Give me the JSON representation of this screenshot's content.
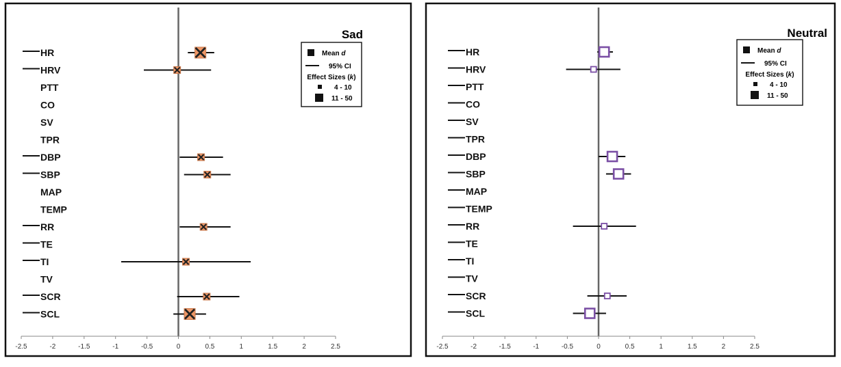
{
  "chart_data": [
    {
      "type": "forest",
      "title": "Sad",
      "x_ticks": [
        "-2.5",
        "-2",
        "-1.5",
        "-1",
        "-0.5",
        "0",
        "0.5",
        "1",
        "1.5",
        "2",
        "2.5"
      ],
      "xlim": [
        -2.5,
        2.5
      ],
      "measures": [
        "HR",
        "HRV",
        "PTT",
        "CO",
        "SV",
        "TPR",
        "DBP",
        "SBP",
        "MAP",
        "TEMP",
        "RR",
        "TE",
        "TI",
        "TV",
        "SCR",
        "SCL"
      ],
      "has_dash": [
        true,
        true,
        false,
        false,
        false,
        false,
        true,
        true,
        false,
        false,
        true,
        true,
        true,
        false,
        true,
        true
      ],
      "points": [
        {
          "measure": "HR",
          "d": 0.35,
          "ci": [
            0.15,
            0.57
          ],
          "k": "11 - 50"
        },
        {
          "measure": "HRV",
          "d": -0.02,
          "ci": [
            -0.55,
            0.52
          ],
          "k": "4 - 10"
        },
        {
          "measure": "DBP",
          "d": 0.36,
          "ci": [
            0.02,
            0.71
          ],
          "k": "4 - 10"
        },
        {
          "measure": "SBP",
          "d": 0.46,
          "ci": [
            0.09,
            0.83
          ],
          "k": "4 - 10"
        },
        {
          "measure": "RR",
          "d": 0.4,
          "ci": [
            0.02,
            0.83
          ],
          "k": "4 - 10"
        },
        {
          "measure": "TI",
          "d": 0.12,
          "ci": [
            -0.91,
            1.15
          ],
          "k": "4 - 10"
        },
        {
          "measure": "SCR",
          "d": 0.45,
          "ci": [
            -0.02,
            0.97
          ],
          "k": "4 - 10"
        },
        {
          "measure": "SCL",
          "d": 0.18,
          "ci": [
            -0.08,
            0.44
          ],
          "k": "11 - 50"
        }
      ],
      "marker": {
        "style": "x-square",
        "fill": "#ee9766",
        "stroke": "#222222"
      },
      "legend": {
        "mean_label": "Mean",
        "mean_symbol": "d",
        "ci_label": "95% CI",
        "es_label": "Effect Sizes (",
        "es_symbol": "k",
        "es_close": ")",
        "small_label": "4 - 10",
        "large_label": "11 - 50"
      }
    },
    {
      "type": "forest",
      "title": "Neutral",
      "x_ticks": [
        "-2.5",
        "-2",
        "-1.5",
        "-1",
        "-0.5",
        "0",
        "0.5",
        "1",
        "1.5",
        "2",
        "2.5"
      ],
      "xlim": [
        -2.5,
        2.5
      ],
      "measures": [
        "HR",
        "HRV",
        "PTT",
        "CO",
        "SV",
        "TPR",
        "DBP",
        "SBP",
        "MAP",
        "TEMP",
        "RR",
        "TE",
        "TI",
        "TV",
        "SCR",
        "SCL"
      ],
      "has_dash": [
        true,
        true,
        true,
        true,
        true,
        true,
        true,
        true,
        true,
        true,
        true,
        true,
        true,
        true,
        true,
        true
      ],
      "points": [
        {
          "measure": "HR",
          "d": 0.09,
          "ci": [
            -0.02,
            0.23
          ],
          "k": "11 - 50"
        },
        {
          "measure": "HRV",
          "d": -0.08,
          "ci": [
            -0.52,
            0.35
          ],
          "k": "4 - 10"
        },
        {
          "measure": "DBP",
          "d": 0.22,
          "ci": [
            0.0,
            0.43
          ],
          "k": "11 - 50"
        },
        {
          "measure": "SBP",
          "d": 0.32,
          "ci": [
            0.12,
            0.52
          ],
          "k": "11 - 50"
        },
        {
          "measure": "RR",
          "d": 0.09,
          "ci": [
            -0.41,
            0.6
          ],
          "k": "4 - 10"
        },
        {
          "measure": "SCR",
          "d": 0.14,
          "ci": [
            -0.18,
            0.45
          ],
          "k": "4 - 10"
        },
        {
          "measure": "SCL",
          "d": -0.14,
          "ci": [
            -0.41,
            0.12
          ],
          "k": "11 - 50"
        }
      ],
      "marker": {
        "style": "open-square",
        "fill": "#ffffff",
        "stroke": "#7b4fa5"
      },
      "legend": {
        "mean_label": "Mean",
        "mean_symbol": "d",
        "ci_label": "95% CI",
        "es_label": "Effect Sizes (",
        "es_symbol": "k",
        "es_close": ")",
        "small_label": "4 - 10",
        "large_label": "11 - 50"
      }
    }
  ]
}
